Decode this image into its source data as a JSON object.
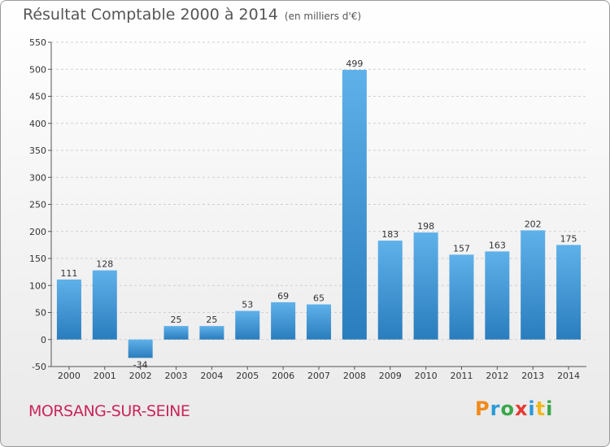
{
  "title": "Résultat Comptable 2000 à 2014",
  "unit": "(en milliers d'€)",
  "commune": "MORSANG-SUR-SEINE",
  "logo": {
    "text": "Proxiti",
    "letters": [
      {
        "ch": "P",
        "color": "#f08a1c"
      },
      {
        "ch": "r",
        "color": "#2a9ad8"
      },
      {
        "ch": "o",
        "color": "#3aa648"
      },
      {
        "ch": "x",
        "color": "#e53935"
      },
      {
        "ch": "i",
        "color": "#2a9ad8"
      },
      {
        "ch": "t",
        "color": "#f0b81c"
      },
      {
        "ch": "i",
        "color": "#3aa648"
      }
    ]
  },
  "colors": {
    "bar_light": "#5fb1ea",
    "bar_dark": "#2a7dbd",
    "grid": "#d0d0d0"
  },
  "chart_data": {
    "type": "bar",
    "title": "Résultat Comptable 2000 à 2014",
    "xlabel": "",
    "ylabel": "(en milliers d'€)",
    "categories": [
      "2000",
      "2001",
      "2002",
      "2003",
      "2004",
      "2005",
      "2006",
      "2007",
      "2008",
      "2009",
      "2010",
      "2011",
      "2012",
      "2013",
      "2014"
    ],
    "values": [
      111,
      128,
      -34,
      25,
      25,
      53,
      69,
      65,
      499,
      183,
      198,
      157,
      163,
      202,
      175
    ],
    "ylim": [
      -50,
      550
    ],
    "yticks": [
      -50,
      0,
      50,
      100,
      150,
      200,
      250,
      300,
      350,
      400,
      450,
      500,
      550
    ],
    "grid": true
  }
}
